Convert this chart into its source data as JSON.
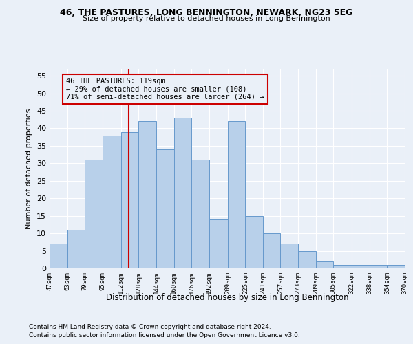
{
  "title1": "46, THE PASTURES, LONG BENNINGTON, NEWARK, NG23 5EG",
  "title2": "Size of property relative to detached houses in Long Bennington",
  "xlabel": "Distribution of detached houses by size in Long Bennington",
  "ylabel": "Number of detached properties",
  "footer1": "Contains HM Land Registry data © Crown copyright and database right 2024.",
  "footer2": "Contains public sector information licensed under the Open Government Licence v3.0.",
  "annotation_title": "46 THE PASTURES: 119sqm",
  "annotation_line1": "← 29% of detached houses are smaller (108)",
  "annotation_line2": "71% of semi-detached houses are larger (264) →",
  "property_size": 119,
  "bar_color": "#b8d0ea",
  "bar_edge_color": "#6699cc",
  "vline_color": "#cc0000",
  "annotation_box_color": "#cc0000",
  "background_color": "#eaf0f8",
  "bins": [
    47,
    63,
    79,
    95,
    112,
    128,
    144,
    160,
    176,
    192,
    209,
    225,
    241,
    257,
    273,
    289,
    305,
    322,
    338,
    354,
    370
  ],
  "bin_labels": [
    "47sqm",
    "63sqm",
    "79sqm",
    "95sqm",
    "112sqm",
    "128sqm",
    "144sqm",
    "160sqm",
    "176sqm",
    "192sqm",
    "209sqm",
    "225sqm",
    "241sqm",
    "257sqm",
    "273sqm",
    "289sqm",
    "305sqm",
    "322sqm",
    "338sqm",
    "354sqm",
    "370sqm"
  ],
  "heights": [
    7,
    11,
    31,
    38,
    39,
    42,
    34,
    43,
    31,
    14,
    42,
    15,
    10,
    7,
    5,
    2,
    1,
    1,
    1,
    1
  ],
  "ylim": [
    0,
    57
  ],
  "yticks": [
    0,
    5,
    10,
    15,
    20,
    25,
    30,
    35,
    40,
    45,
    50,
    55
  ]
}
